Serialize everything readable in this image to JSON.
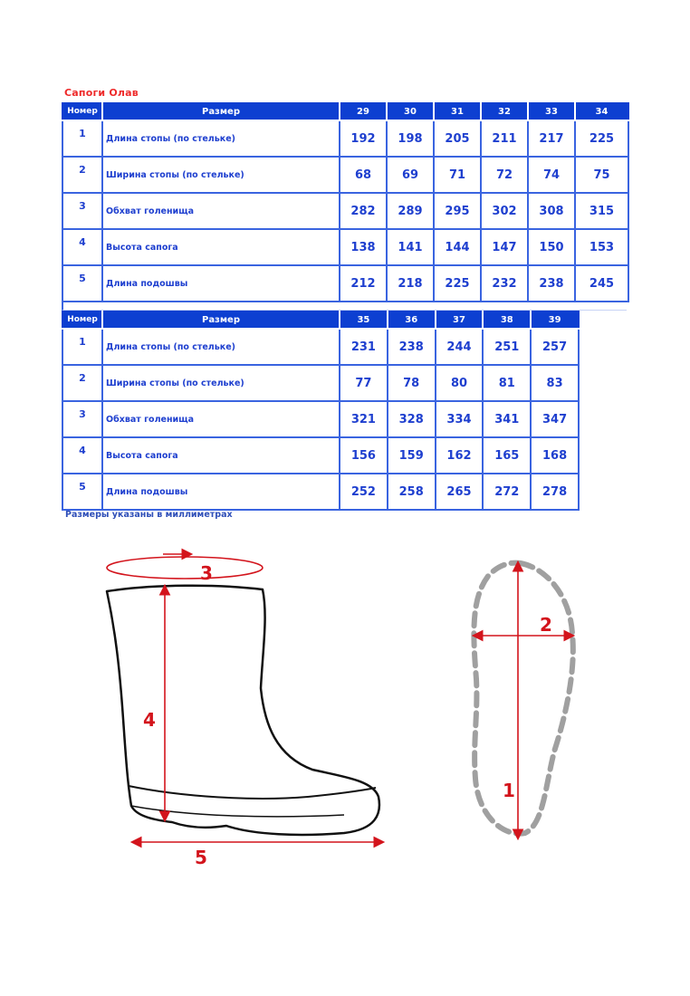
{
  "title": "Сапоги Олав",
  "columns": {
    "number": "Номер",
    "size": "Размер"
  },
  "table1": {
    "sizes": [
      "29",
      "30",
      "31",
      "32",
      "33",
      "34"
    ],
    "rows": [
      {
        "n": "1",
        "label": "Длина стопы (по стельке)",
        "values": [
          "192",
          "198",
          "205",
          "211",
          "217",
          "225"
        ]
      },
      {
        "n": "2",
        "label": "Ширина стопы (по стельке)",
        "values": [
          "68",
          "69",
          "71",
          "72",
          "74",
          "75"
        ]
      },
      {
        "n": "3",
        "label": "Обхват голенища",
        "values": [
          "282",
          "289",
          "295",
          "302",
          "308",
          "315"
        ]
      },
      {
        "n": "4",
        "label": "Высота сапога",
        "values": [
          "138",
          "141",
          "144",
          "147",
          "150",
          "153"
        ]
      },
      {
        "n": "5",
        "label": "Длина подошвы",
        "values": [
          "212",
          "218",
          "225",
          "232",
          "238",
          "245"
        ]
      }
    ]
  },
  "table2": {
    "sizes": [
      "35",
      "36",
      "37",
      "38",
      "39"
    ],
    "rows": [
      {
        "n": "1",
        "label": "Длина стопы (по стельке)",
        "values": [
          "231",
          "238",
          "244",
          "251",
          "257"
        ]
      },
      {
        "n": "2",
        "label": "Ширина стопы (по стельке)",
        "values": [
          "77",
          "78",
          "80",
          "81",
          "83"
        ]
      },
      {
        "n": "3",
        "label": "Обхват голенища",
        "values": [
          "321",
          "328",
          "334",
          "341",
          "347"
        ]
      },
      {
        "n": "4",
        "label": "Высота сапога",
        "values": [
          "156",
          "159",
          "162",
          "165",
          "168"
        ]
      },
      {
        "n": "5",
        "label": "Длина подошвы",
        "values": [
          "252",
          "258",
          "265",
          "272",
          "278"
        ]
      }
    ]
  },
  "note": "Размеры указаны в миллиметрах",
  "diagram": {
    "labels": [
      "1",
      "2",
      "3",
      "4",
      "5"
    ]
  },
  "colors": {
    "header": "#0d3fd1",
    "text": "#1e3fcf",
    "title": "#ee2a2a",
    "arrow": "#d3141c",
    "insole": "#a0a0a0"
  }
}
